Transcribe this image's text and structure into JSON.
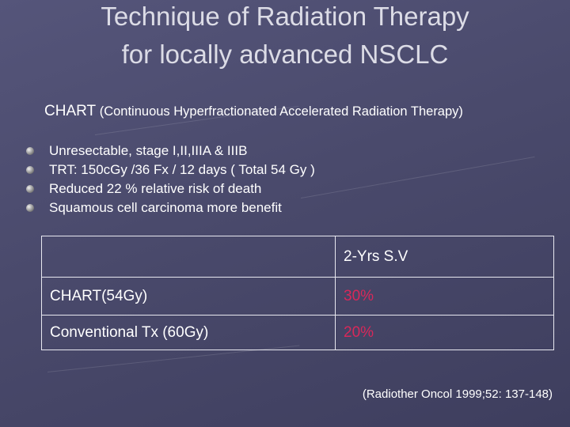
{
  "title": [
    "Technique of Radiation Therapy",
    "for locally advanced NSCLC"
  ],
  "subtitle": {
    "term": "CHART",
    "expansion": "(Continuous Hyperfractionated Accelerated Radiation Therapy)"
  },
  "bullets": [
    "Unresectable, stage I,II,IIIA & IIIB",
    "TRT: 150cGy /36 Fx / 12 days  ( Total 54 Gy )",
    "Reduced 22 % relative risk of death",
    "Squamous cell carcinoma more benefit"
  ],
  "table": {
    "column_header": "2-Yrs S.V",
    "rows": [
      [
        "CHART(54Gy)",
        "30%"
      ],
      [
        "Conventional Tx (60Gy)",
        "20%"
      ]
    ]
  },
  "citation": "(Radiother Oncol 1999;52: 137-148)"
}
